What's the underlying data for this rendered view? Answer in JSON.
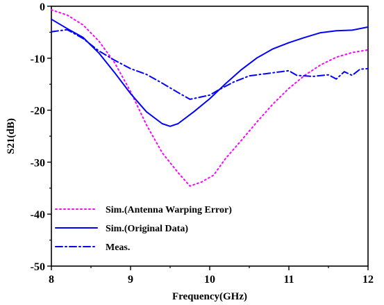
{
  "chart_data": {
    "type": "line",
    "xlabel": "Frequency(GHz)",
    "ylabel": "S21(dB)",
    "xlim": [
      8,
      12
    ],
    "ylim": [
      -50,
      0
    ],
    "xticks": [
      8,
      9,
      10,
      11,
      12
    ],
    "yticks": [
      0,
      -10,
      -20,
      -30,
      -40,
      -50
    ],
    "xtick_labels": [
      "8",
      "9",
      "10",
      "11",
      "12"
    ],
    "ytick_labels": [
      "0",
      "-10",
      "-20",
      "-30",
      "-40",
      "-50"
    ],
    "grid": false,
    "legend_position": "bottom-left",
    "series": [
      {
        "name": "Sim.(Antenna Warping Error)",
        "color": "#ff00ff",
        "style": "dotted",
        "points": [
          [
            8.0,
            -0.7
          ],
          [
            8.2,
            -1.7
          ],
          [
            8.4,
            -3.6
          ],
          [
            8.6,
            -6.7
          ],
          [
            8.8,
            -10.9
          ],
          [
            9.0,
            -16.4
          ],
          [
            9.2,
            -22.8
          ],
          [
            9.4,
            -28.2
          ],
          [
            9.6,
            -32.0
          ],
          [
            9.75,
            -34.6
          ],
          [
            9.9,
            -33.8
          ],
          [
            10.05,
            -32.5
          ],
          [
            10.2,
            -29.3
          ],
          [
            10.4,
            -25.8
          ],
          [
            10.6,
            -22.2
          ],
          [
            10.8,
            -18.8
          ],
          [
            11.0,
            -15.8
          ],
          [
            11.2,
            -13.3
          ],
          [
            11.4,
            -11.3
          ],
          [
            11.6,
            -9.8
          ],
          [
            11.8,
            -8.9
          ],
          [
            12.0,
            -8.4
          ]
        ]
      },
      {
        "name": "Sim.(Original Data)",
        "color": "#0000ff",
        "style": "solid",
        "points": [
          [
            8.0,
            -2.5
          ],
          [
            8.2,
            -4.3
          ],
          [
            8.4,
            -6.0
          ],
          [
            8.6,
            -9.0
          ],
          [
            8.8,
            -12.8
          ],
          [
            9.0,
            -16.8
          ],
          [
            9.2,
            -20.3
          ],
          [
            9.4,
            -22.6
          ],
          [
            9.5,
            -23.1
          ],
          [
            9.6,
            -22.6
          ],
          [
            9.8,
            -20.3
          ],
          [
            10.0,
            -17.8
          ],
          [
            10.2,
            -14.9
          ],
          [
            10.4,
            -12.2
          ],
          [
            10.6,
            -9.9
          ],
          [
            10.8,
            -8.2
          ],
          [
            11.0,
            -7.0
          ],
          [
            11.2,
            -6.0
          ],
          [
            11.4,
            -5.1
          ],
          [
            11.6,
            -4.7
          ],
          [
            11.8,
            -4.6
          ],
          [
            12.0,
            -4.0
          ]
        ]
      },
      {
        "name": "Meas.",
        "color": "#0000ff",
        "style": "dashdot",
        "points": [
          [
            8.0,
            -4.9
          ],
          [
            8.2,
            -4.5
          ],
          [
            8.4,
            -6.2
          ],
          [
            8.6,
            -8.6
          ],
          [
            8.8,
            -10.4
          ],
          [
            9.0,
            -12.0
          ],
          [
            9.2,
            -13.1
          ],
          [
            9.4,
            -14.8
          ],
          [
            9.6,
            -16.6
          ],
          [
            9.75,
            -17.9
          ],
          [
            9.85,
            -17.6
          ],
          [
            10.0,
            -17.1
          ],
          [
            10.1,
            -16.2
          ],
          [
            10.3,
            -14.6
          ],
          [
            10.5,
            -13.4
          ],
          [
            10.7,
            -13.0
          ],
          [
            10.9,
            -12.6
          ],
          [
            11.0,
            -12.4
          ],
          [
            11.1,
            -13.3
          ],
          [
            11.3,
            -13.5
          ],
          [
            11.5,
            -13.2
          ],
          [
            11.6,
            -14.0
          ],
          [
            11.7,
            -12.6
          ],
          [
            11.8,
            -13.3
          ],
          [
            11.9,
            -12.1
          ],
          [
            12.0,
            -12.0
          ]
        ]
      }
    ]
  }
}
